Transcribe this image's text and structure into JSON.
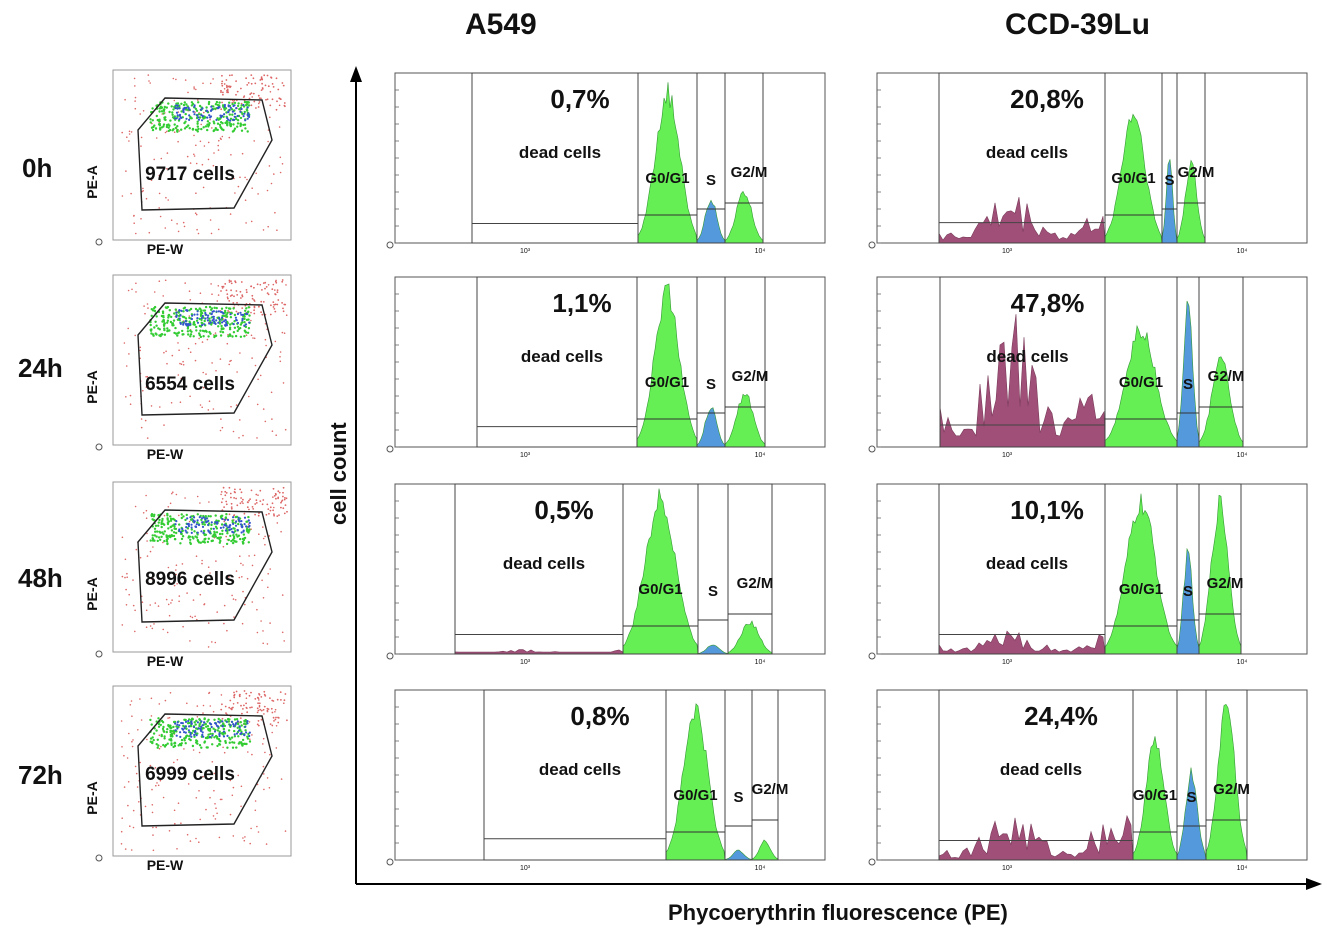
{
  "figure": {
    "columns": [
      "A549",
      "CCD-39Lu"
    ],
    "time_points": [
      "0h",
      "24h",
      "48h",
      "72h"
    ],
    "ylabel": "cell count",
    "xlabel": "Phycoerythrin fluorescence (PE)",
    "dot_axes": {
      "x": "PE-W",
      "y": "PE-A"
    },
    "gate_labels": {
      "dead": "dead cells",
      "g0g1": "G0/G1",
      "s": "S",
      "g2m": "G2/M"
    },
    "colors": {
      "g0g1": "#66ee55",
      "s": "#5599dd",
      "g2m": "#66ee55",
      "dead": "#a05078",
      "dot_green": "#33cc33",
      "dot_blue": "#3355cc",
      "dot_red": "#dd6666"
    }
  },
  "chart_data": [
    {
      "type": "scatter",
      "panel": "dot-plot",
      "time": "0h",
      "xlabel": "PE-W",
      "ylabel": "PE-A",
      "gate_count": "9717 cells"
    },
    {
      "type": "scatter",
      "panel": "dot-plot",
      "time": "24h",
      "xlabel": "PE-W",
      "ylabel": "PE-A",
      "gate_count": "6554 cells"
    },
    {
      "type": "scatter",
      "panel": "dot-plot",
      "time": "48h",
      "xlabel": "PE-W",
      "ylabel": "PE-A",
      "gate_count": "8996 cells"
    },
    {
      "type": "scatter",
      "panel": "dot-plot",
      "time": "72h",
      "xlabel": "PE-W",
      "ylabel": "PE-A",
      "gate_count": "6999 cells"
    },
    {
      "type": "area",
      "panel": "histogram",
      "cell_line": "A549",
      "time": "0h",
      "dead_pct": "0,7%"
    },
    {
      "type": "area",
      "panel": "histogram",
      "cell_line": "A549",
      "time": "24h",
      "dead_pct": "1,1%"
    },
    {
      "type": "area",
      "panel": "histogram",
      "cell_line": "A549",
      "time": "48h",
      "dead_pct": "0,5%"
    },
    {
      "type": "area",
      "panel": "histogram",
      "cell_line": "A549",
      "time": "72h",
      "dead_pct": "0,8%"
    },
    {
      "type": "area",
      "panel": "histogram",
      "cell_line": "CCD-39Lu",
      "time": "0h",
      "dead_pct": "20,8%"
    },
    {
      "type": "area",
      "panel": "histogram",
      "cell_line": "CCD-39Lu",
      "time": "24h",
      "dead_pct": "47,8%"
    },
    {
      "type": "area",
      "panel": "histogram",
      "cell_line": "CCD-39Lu",
      "time": "48h",
      "dead_pct": "10,1%"
    },
    {
      "type": "area",
      "panel": "histogram",
      "cell_line": "CCD-39Lu",
      "time": "72h",
      "dead_pct": "24,4%"
    }
  ]
}
